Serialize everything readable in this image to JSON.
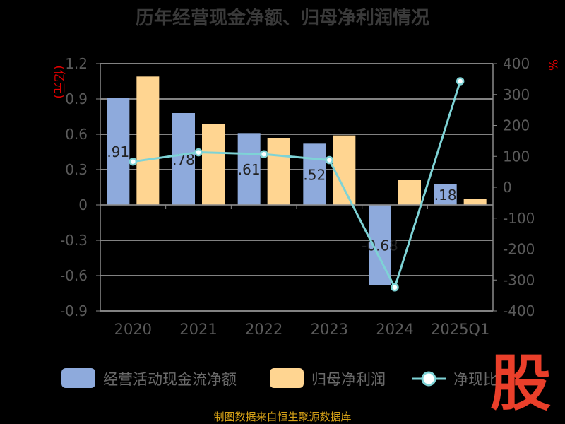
{
  "chart_data": {
    "type": "bar",
    "title": "历年经营现金净额、归母净利润情况",
    "categories": [
      "2020",
      "2021",
      "2022",
      "2023",
      "2024",
      "2025Q1"
    ],
    "y_left_unit": "(亿元)",
    "y_right_unit": "%",
    "y_left_ticks": [
      "1.2",
      "0.9",
      "0.6",
      "0.3",
      "0",
      "-0.3",
      "-0.6",
      "-0.9"
    ],
    "y_right_ticks": [
      "400",
      "300",
      "200",
      "100",
      "0",
      "-100",
      "-200",
      "-300",
      "-400"
    ],
    "y_left_range": [
      -0.9,
      1.2
    ],
    "y_right_range": [
      -400,
      400
    ],
    "series": [
      {
        "name": "经营活动现金流净额",
        "type": "bar",
        "color": "#8EAADC",
        "values": [
          0.91,
          0.78,
          0.61,
          0.52,
          -0.68,
          0.18
        ],
        "labels": [
          ".91",
          ".78",
          ".61",
          ".52",
          "-0.68",
          ".18"
        ]
      },
      {
        "name": "归母净利润",
        "type": "bar",
        "color": "#FFD591",
        "values": [
          1.09,
          0.69,
          0.57,
          0.59,
          0.21,
          0.05
        ]
      },
      {
        "name": "净现比",
        "type": "line",
        "axis": "right",
        "color": "#7ED3D6",
        "values": [
          83,
          113,
          107,
          88,
          -324,
          343
        ]
      }
    ],
    "legend_position": "bottom",
    "grid": true
  },
  "legend": {
    "cash_label": "经营活动现金流净额",
    "profit_label": "归母净利润",
    "ratio_label": "净现比"
  },
  "watermark": "股",
  "source_note": "制图数据来自恒生聚源数据库"
}
